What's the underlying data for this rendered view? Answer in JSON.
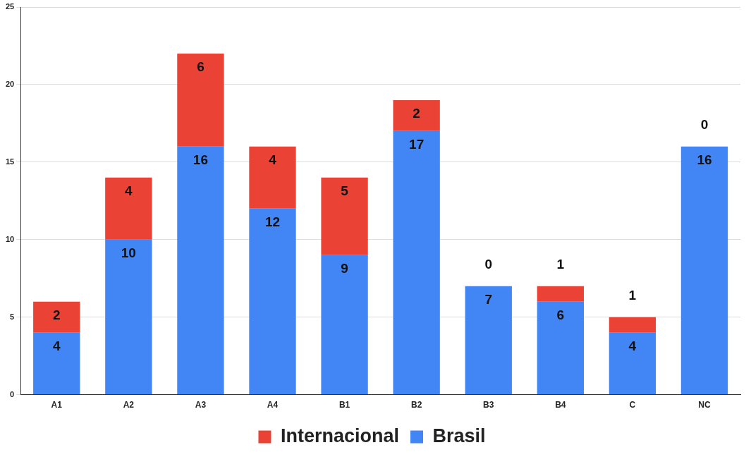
{
  "chart_data": {
    "type": "bar",
    "stacked": true,
    "categories": [
      "A1",
      "A2",
      "A3",
      "A4",
      "B1",
      "B2",
      "B3",
      "B4",
      "C",
      "NC"
    ],
    "series": [
      {
        "name": "Brasil",
        "color": "#4285f4",
        "values": [
          4,
          10,
          16,
          12,
          9,
          17,
          7,
          6,
          4,
          16
        ]
      },
      {
        "name": "Internacional",
        "color": "#ea4335",
        "values": [
          2,
          4,
          6,
          4,
          5,
          2,
          0,
          1,
          1,
          0
        ]
      }
    ],
    "ylim": [
      0,
      25
    ],
    "yticks": [
      0,
      5,
      10,
      15,
      20,
      25
    ],
    "grid": "y",
    "legend": "bottom",
    "data_labels": true
  }
}
